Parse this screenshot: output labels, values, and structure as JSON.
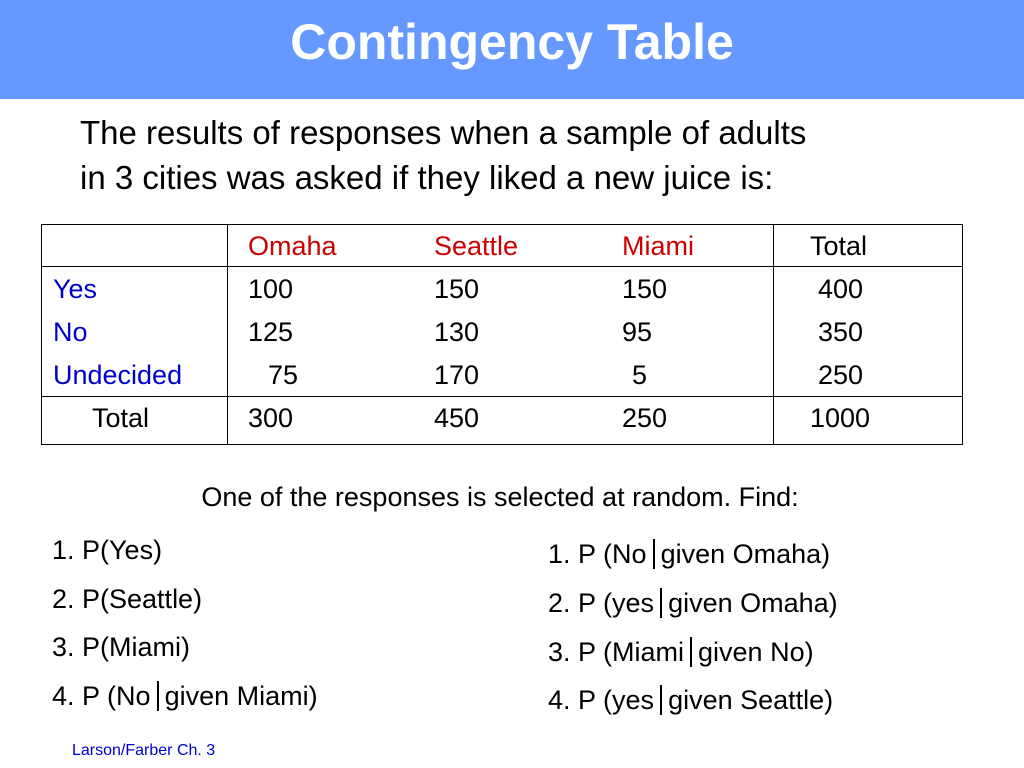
{
  "slide": {
    "title": "Contingency Table",
    "intro_line1": "The results of responses when a sample of adults",
    "intro_line2": "in 3 cities was asked if they liked a new juice is:",
    "prompt": "One of the responses is selected at random. Find:",
    "footer": "Larson/Farber Ch. 3",
    "colors": {
      "title_bar": "#6699ff",
      "column_headers": "#cc0000",
      "row_headers": "#0000cc",
      "footer": "#0000cc"
    }
  },
  "table": {
    "columns": [
      "Omaha",
      "Seattle",
      "Miami",
      "Total"
    ],
    "rows": [
      {
        "label": "Yes",
        "values": [
          "100",
          "150",
          "150",
          "400"
        ]
      },
      {
        "label": "No",
        "values": [
          "125",
          "130",
          "95",
          "350"
        ]
      },
      {
        "label": "Undecided",
        "values": [
          "75",
          "170",
          "5",
          "250"
        ]
      }
    ],
    "total": {
      "label": "Total",
      "values": [
        "300",
        "450",
        "250",
        "1000"
      ]
    }
  },
  "questions": {
    "left": [
      {
        "text": "1. P(Yes)"
      },
      {
        "text": "2. P(Seattle)"
      },
      {
        "text": "3. P(Miami)"
      },
      {
        "before": "4. P (No",
        "after": "given Miami)"
      }
    ],
    "right": [
      {
        "before": "1. P (No",
        "after": "given Omaha)"
      },
      {
        "before": "2. P (yes",
        "after": "given Omaha)"
      },
      {
        "before": "3. P (Miami",
        "after": "given No)"
      },
      {
        "before": "4. P (yes",
        "after": "given Seattle)"
      }
    ]
  }
}
